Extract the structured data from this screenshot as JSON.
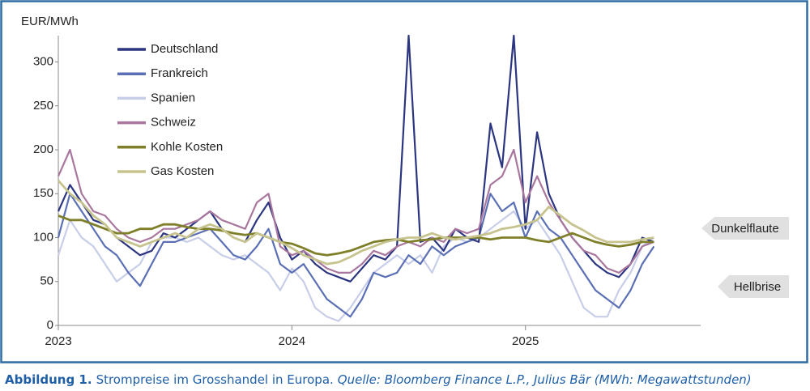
{
  "chart_data": {
    "type": "line",
    "ylabel": "EUR/MWh",
    "x": [
      2023.0,
      2023.05,
      2023.1,
      2023.15,
      2023.2,
      2023.25,
      2023.3,
      2023.35,
      2023.4,
      2023.45,
      2023.5,
      2023.55,
      2023.6,
      2023.65,
      2023.7,
      2023.75,
      2023.8,
      2023.85,
      2023.9,
      2023.95,
      2024.0,
      2024.05,
      2024.1,
      2024.15,
      2024.2,
      2024.25,
      2024.3,
      2024.35,
      2024.4,
      2024.45,
      2024.5,
      2024.55,
      2024.6,
      2024.65,
      2024.7,
      2024.75,
      2024.8,
      2024.85,
      2024.9,
      2024.95,
      2025.0,
      2025.05,
      2025.1,
      2025.15,
      2025.2,
      2025.25,
      2025.3,
      2025.35,
      2025.4,
      2025.45,
      2025.5,
      2025.55
    ],
    "series": [
      {
        "name": "Deutschland",
        "color": "#2b3580",
        "values": [
          130,
          160,
          140,
          120,
          115,
          100,
          90,
          80,
          85,
          105,
          100,
          110,
          120,
          130,
          110,
          100,
          95,
          120,
          140,
          100,
          75,
          85,
          70,
          60,
          55,
          50,
          65,
          80,
          75,
          90,
          330,
          95,
          100,
          85,
          110,
          100,
          95,
          230,
          180,
          330,
          110,
          220,
          150,
          120,
          100,
          85,
          70,
          60,
          55,
          70,
          100,
          95
        ]
      },
      {
        "name": "Frankreich",
        "color": "#5b6fb5",
        "values": [
          100,
          150,
          130,
          110,
          90,
          80,
          60,
          45,
          70,
          95,
          95,
          100,
          105,
          110,
          95,
          80,
          75,
          90,
          110,
          70,
          60,
          70,
          50,
          30,
          20,
          10,
          30,
          60,
          55,
          60,
          80,
          70,
          90,
          80,
          90,
          95,
          100,
          150,
          130,
          140,
          100,
          130,
          110,
          100,
          80,
          60,
          40,
          30,
          20,
          40,
          70,
          90
        ]
      },
      {
        "name": "Spanien",
        "color": "#c8cde8",
        "values": [
          80,
          120,
          100,
          90,
          70,
          50,
          60,
          70,
          95,
          100,
          100,
          95,
          100,
          90,
          80,
          75,
          80,
          70,
          60,
          40,
          65,
          50,
          20,
          10,
          5,
          20,
          40,
          60,
          70,
          80,
          70,
          80,
          60,
          90,
          100,
          95,
          100,
          110,
          120,
          130,
          110,
          120,
          100,
          80,
          50,
          20,
          10,
          10,
          40,
          60,
          90,
          100
        ]
      },
      {
        "name": "Schweiz",
        "color": "#a9779e",
        "values": [
          170,
          200,
          150,
          130,
          125,
          110,
          100,
          95,
          100,
          110,
          110,
          115,
          120,
          130,
          120,
          115,
          110,
          140,
          150,
          90,
          80,
          85,
          75,
          65,
          60,
          60,
          70,
          85,
          80,
          90,
          95,
          90,
          100,
          95,
          110,
          105,
          110,
          160,
          170,
          200,
          140,
          170,
          140,
          120,
          100,
          85,
          80,
          65,
          60,
          70,
          90,
          95
        ]
      },
      {
        "name": "Kohle Kosten",
        "color": "#7f7f2a",
        "values": [
          125,
          120,
          120,
          115,
          110,
          105,
          105,
          110,
          110,
          115,
          115,
          112,
          110,
          110,
          108,
          105,
          103,
          105,
          100,
          95,
          93,
          88,
          82,
          80,
          82,
          85,
          90,
          95,
          97,
          98,
          95,
          97,
          98,
          100,
          100,
          100,
          100,
          98,
          100,
          100,
          100,
          97,
          95,
          100,
          105,
          100,
          95,
          92,
          90,
          92,
          95,
          95
        ]
      },
      {
        "name": "Gas Kosten",
        "color": "#c6c38e",
        "values": [
          165,
          150,
          140,
          125,
          115,
          100,
          95,
          90,
          95,
          100,
          105,
          100,
          110,
          115,
          110,
          100,
          95,
          105,
          100,
          95,
          88,
          80,
          75,
          70,
          72,
          78,
          85,
          90,
          95,
          98,
          100,
          100,
          105,
          100,
          98,
          100,
          102,
          105,
          110,
          112,
          115,
          120,
          135,
          125,
          115,
          108,
          100,
          95,
          95,
          95,
          98,
          100
        ]
      }
    ],
    "xlim": [
      2023,
      2025.75
    ],
    "xticks": [
      2023,
      2024,
      2025
    ],
    "ylim": [
      0,
      330
    ],
    "yticks": [
      0,
      50,
      100,
      150,
      200,
      250,
      300
    ],
    "annotations": [
      "Dunkelflaute",
      "Hellbrise"
    ],
    "caption_label": "Abbildung 1.",
    "caption": "Strompreise im Grosshandel in Europa.",
    "source": "Quelle: Bloomberg Finance L.P., Julius Bär (MWh: Megawattstunden)"
  }
}
